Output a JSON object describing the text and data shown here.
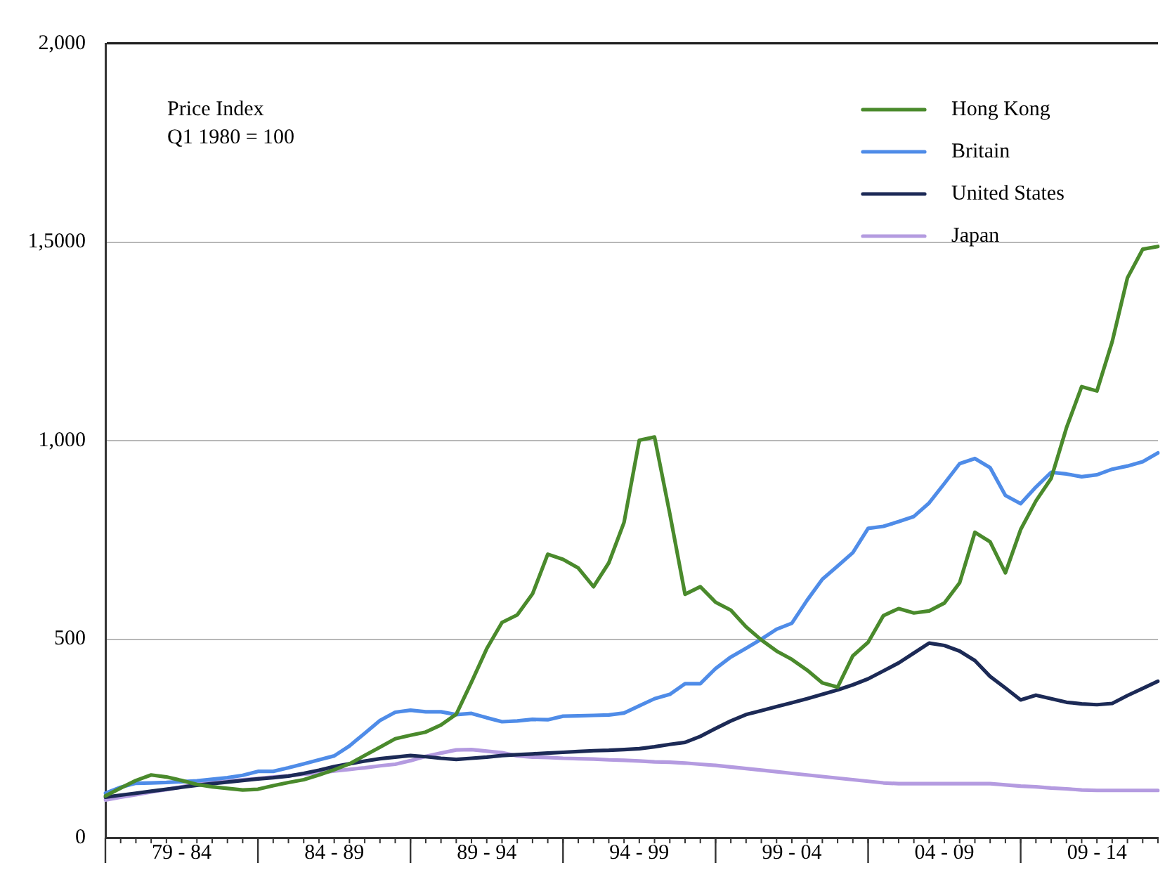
{
  "chart_data": {
    "type": "line",
    "annotations": [
      "Price Index",
      "Q1 1980 = 100"
    ],
    "categories": [
      null,
      null,
      null,
      null,
      null,
      "79 - 84",
      null,
      null,
      null,
      null,
      null,
      null,
      null,
      null,
      null,
      "84 - 89",
      null,
      null,
      null,
      null,
      null,
      null,
      null,
      null,
      null,
      "89 - 94",
      null,
      null,
      null,
      null,
      null,
      null,
      null,
      null,
      null,
      "94 - 99",
      null,
      null,
      null,
      null,
      null,
      null,
      null,
      null,
      null,
      "99 - 04",
      null,
      null,
      null,
      null,
      null,
      null,
      null,
      null,
      null,
      "04 - 09",
      null,
      null,
      null,
      null,
      null,
      null,
      null,
      null,
      null,
      "09 - 14",
      null,
      null,
      null,
      null
    ],
    "ylim": [
      0,
      2000
    ],
    "yticks": [
      0,
      500,
      {
        "value": 1000,
        "label": "1,000"
      },
      {
        "value": 1500,
        "label": "1,5000"
      },
      {
        "value": 2000,
        "label": "2,000"
      }
    ],
    "grid": "y",
    "legend": "top right",
    "marker": "none",
    "line_style": "solid",
    "series": [
      {
        "name": "Hong Kong",
        "color": "#4a8a2c",
        "values": [
          105,
          125,
          144,
          158,
          153,
          144,
          134,
          128,
          124,
          120,
          122,
          131,
          139,
          146,
          158,
          171,
          186,
          207,
          228,
          249,
          258,
          266,
          284,
          311,
          392,
          476,
          542,
          561,
          614,
          714,
          701,
          679,
          632,
          692,
          794,
          1001,
          1009,
          816,
          613,
          632,
          593,
          573,
          531,
          498,
          470,
          449,
          422,
          390,
          379,
          458,
          492,
          559,
          577,
          566,
          571,
          591,
          642,
          769,
          745,
          667,
          776,
          848,
          905,
          1032,
          1136,
          1125,
          1249,
          1410,
          1482,
          1489
        ]
      },
      {
        "name": "Britain",
        "color": "#4f8ce8",
        "values": [
          112,
          127,
          137,
          138,
          139,
          141,
          143,
          147,
          151,
          157,
          167,
          167,
          176,
          186,
          196,
          206,
          231,
          263,
          295,
          316,
          321,
          317,
          317,
          310,
          313,
          302,
          292,
          294,
          298,
          297,
          306,
          307,
          308,
          309,
          314,
          332,
          350,
          361,
          388,
          388,
          426,
          455,
          477,
          500,
          525,
          540,
          598,
          651,
          684,
          718,
          779,
          784,
          796,
          809,
          843,
          892,
          942,
          955,
          932,
          862,
          841,
          883,
          920,
          916,
          909,
          914,
          928,
          936,
          947,
          969
        ]
      },
      {
        "name": "United States",
        "color": "#1c2a56",
        "values": [
          102,
          107,
          112,
          117,
          122,
          127,
          132,
          136,
          140,
          144,
          148,
          151,
          155,
          162,
          170,
          179,
          186,
          193,
          199,
          203,
          207,
          204,
          200,
          197,
          200,
          203,
          207,
          209,
          211,
          213,
          215,
          217,
          219,
          220,
          222,
          224,
          229,
          235,
          240,
          255,
          275,
          294,
          310,
          320,
          330,
          340,
          350,
          361,
          372,
          385,
          400,
          420,
          440,
          465,
          490,
          484,
          470,
          446,
          406,
          377,
          347,
          359,
          350,
          341,
          337,
          335,
          338,
          358,
          376,
          394
        ]
      },
      {
        "name": "Japan",
        "color": "#b49be0",
        "values": [
          95,
          102,
          108,
          115,
          121,
          128,
          135,
          139,
          142,
          146,
          149,
          153,
          156,
          160,
          163,
          168,
          172,
          176,
          181,
          185,
          194,
          205,
          213,
          221,
          222,
          218,
          214,
          206,
          203,
          202,
          200,
          199,
          198,
          196,
          195,
          193,
          191,
          190,
          188,
          185,
          182,
          178,
          174,
          170,
          166,
          162,
          158,
          154,
          150,
          146,
          142,
          138,
          136,
          136,
          136,
          136,
          136,
          136,
          136,
          133,
          130,
          128,
          125,
          123,
          120,
          119,
          119,
          119,
          119,
          119
        ]
      }
    ]
  }
}
